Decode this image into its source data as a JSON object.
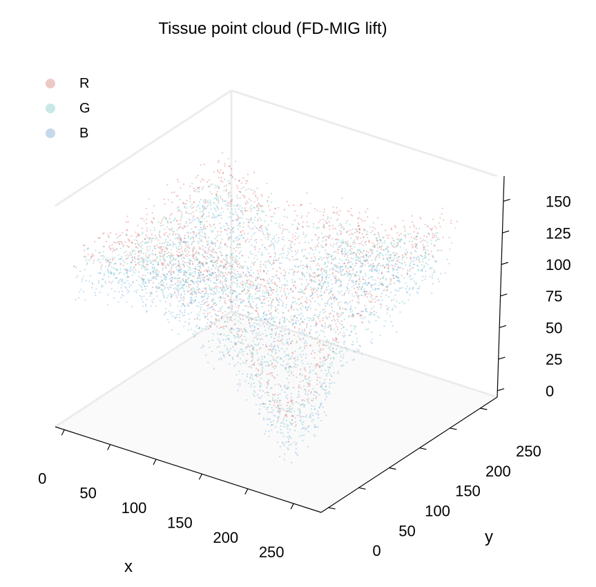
{
  "chart_data": {
    "type": "scatter",
    "projection": "3d",
    "title": "Tissue point cloud (FD-MIG lift)",
    "xlabel": "x",
    "ylabel": "y",
    "zlabel": "",
    "xlim": [
      0,
      280
    ],
    "ylim": [
      0,
      280
    ],
    "zlim": [
      0,
      160
    ],
    "x_ticks": [
      0,
      50,
      100,
      150,
      200,
      250
    ],
    "y_ticks": [
      0,
      50,
      100,
      150,
      200,
      250
    ],
    "z_ticks": [
      0,
      25,
      50,
      75,
      100,
      125,
      150
    ],
    "grid": false,
    "legend_position": "top-left",
    "series": [
      {
        "name": "R",
        "color": "#e8b4ae",
        "marker_color": "#d9534f",
        "approx_z_offset": 10
      },
      {
        "name": "G",
        "color": "#b8e3e0",
        "marker_color": "#3fb8b0",
        "approx_z_offset": 0
      },
      {
        "name": "B",
        "color": "#b9d2e6",
        "marker_color": "#5b9bd5",
        "approx_z_offset": -14
      }
    ],
    "surface": {
      "description_of_shape_in_data_units": "elevated plateau ~z 110-140 with a deep trough along a diagonal valley reaching ~z 30 near x=190,y=60",
      "plateau_z": 120,
      "valley_min_z": 40
    }
  }
}
